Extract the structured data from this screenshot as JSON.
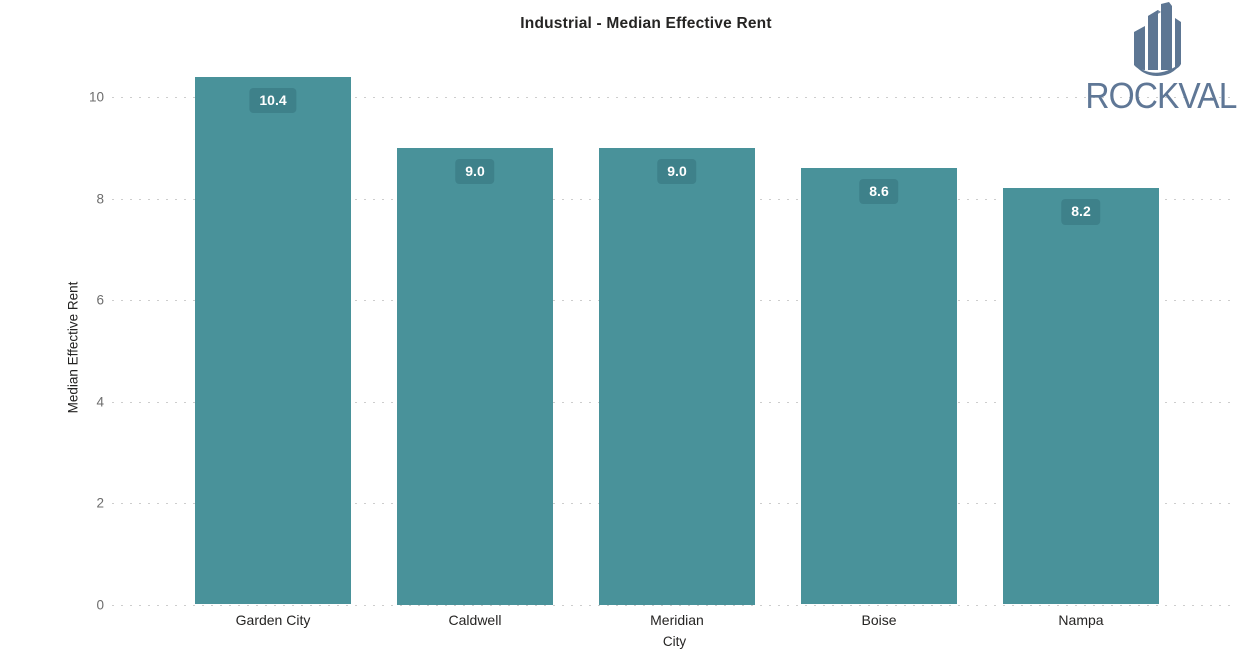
{
  "header": {
    "title": "Industrial - Median Effective Rent"
  },
  "logo": {
    "text": "ROCKVAL",
    "icon": "buildings-icon",
    "icon_color": "#5d7693",
    "text_color": "#5f7796"
  },
  "chart_data": {
    "type": "bar",
    "title": "Industrial - Median Effective Rent",
    "categories": [
      "Garden City",
      "Caldwell",
      "Meridian",
      "Boise",
      "Nampa"
    ],
    "values": [
      10.4,
      9.0,
      9.0,
      8.6,
      8.2
    ],
    "value_labels": [
      "10.4",
      "9.0",
      "9.0",
      "8.6",
      "8.2"
    ],
    "xlabel": "City",
    "ylabel": "Median Effective Rent",
    "ylim": [
      0,
      11
    ],
    "yticks": [
      0,
      2,
      4,
      6,
      8,
      10
    ],
    "grid": "horizontal dotted",
    "legend": "none",
    "bar_color": "#49929A",
    "badge_color": "#3E818A",
    "badge_text_color": "#FFFFFF",
    "gridline_color": "#cdcdcd",
    "tick_label_color": "#6d6d6d",
    "axis_title_color": "#252423"
  }
}
